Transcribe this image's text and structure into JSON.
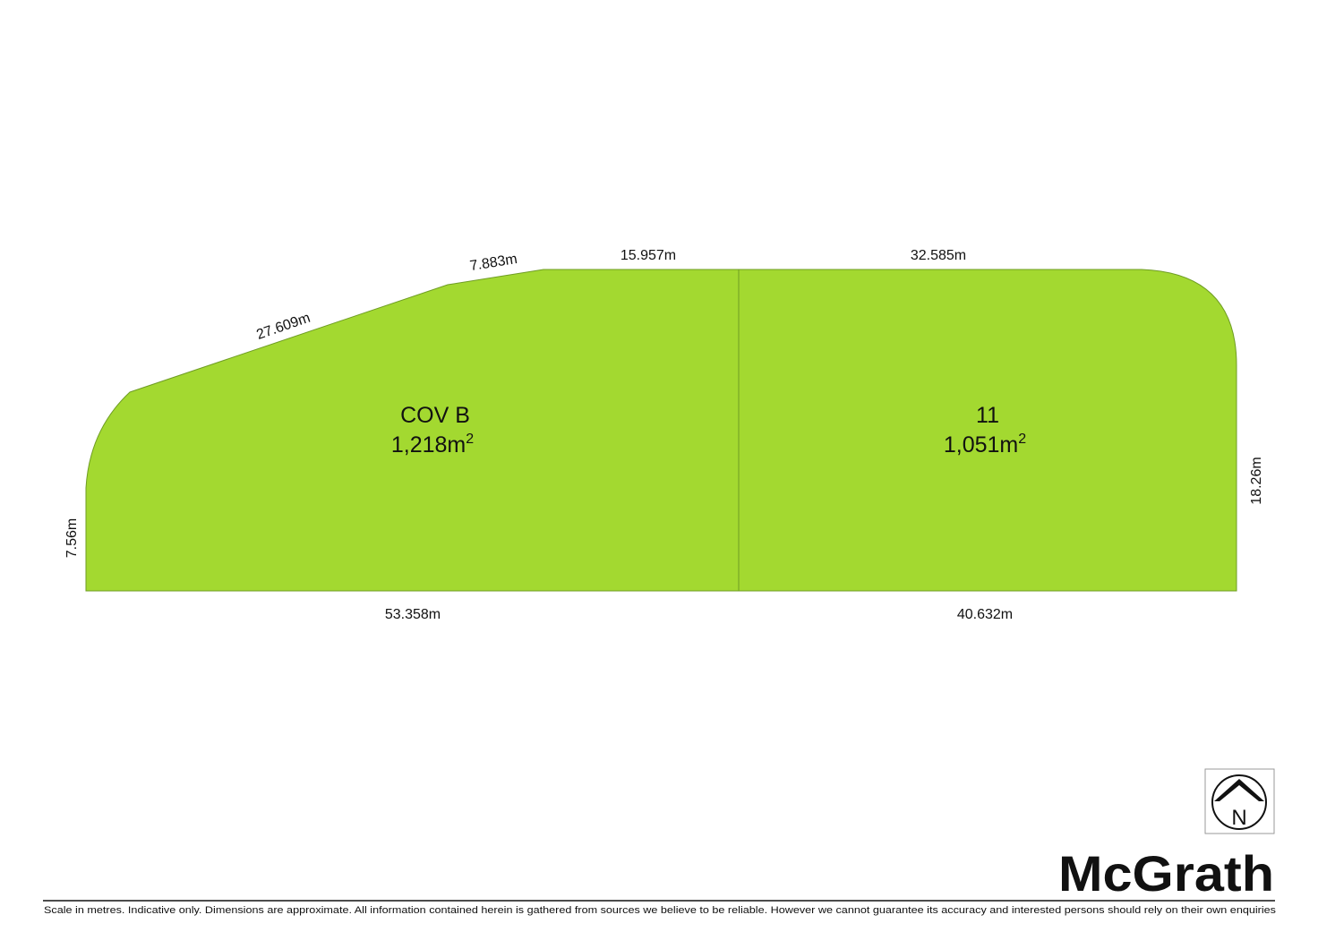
{
  "lots": [
    {
      "label": "COV B",
      "area": "1,218m",
      "area_superscript": "2"
    },
    {
      "label": "11",
      "area": "1,051m",
      "area_superscript": "2"
    }
  ],
  "dimensions": {
    "top_slope_short": "7.883m",
    "top_slope_long": "27.609m",
    "top_left": "15.957m",
    "top_right": "32.585m",
    "left": "7.56m",
    "right": "18.26m",
    "bottom_left": "53.358m",
    "bottom_right": "40.632m"
  },
  "north": "N",
  "brand": "McGrath",
  "disclaimer": "Scale in metres. Indicative only. Dimensions are approximate. All information contained herein is gathered from sources we believe to be reliable. However we cannot guarantee its accuracy and interested persons should rely on their own enquiries"
}
